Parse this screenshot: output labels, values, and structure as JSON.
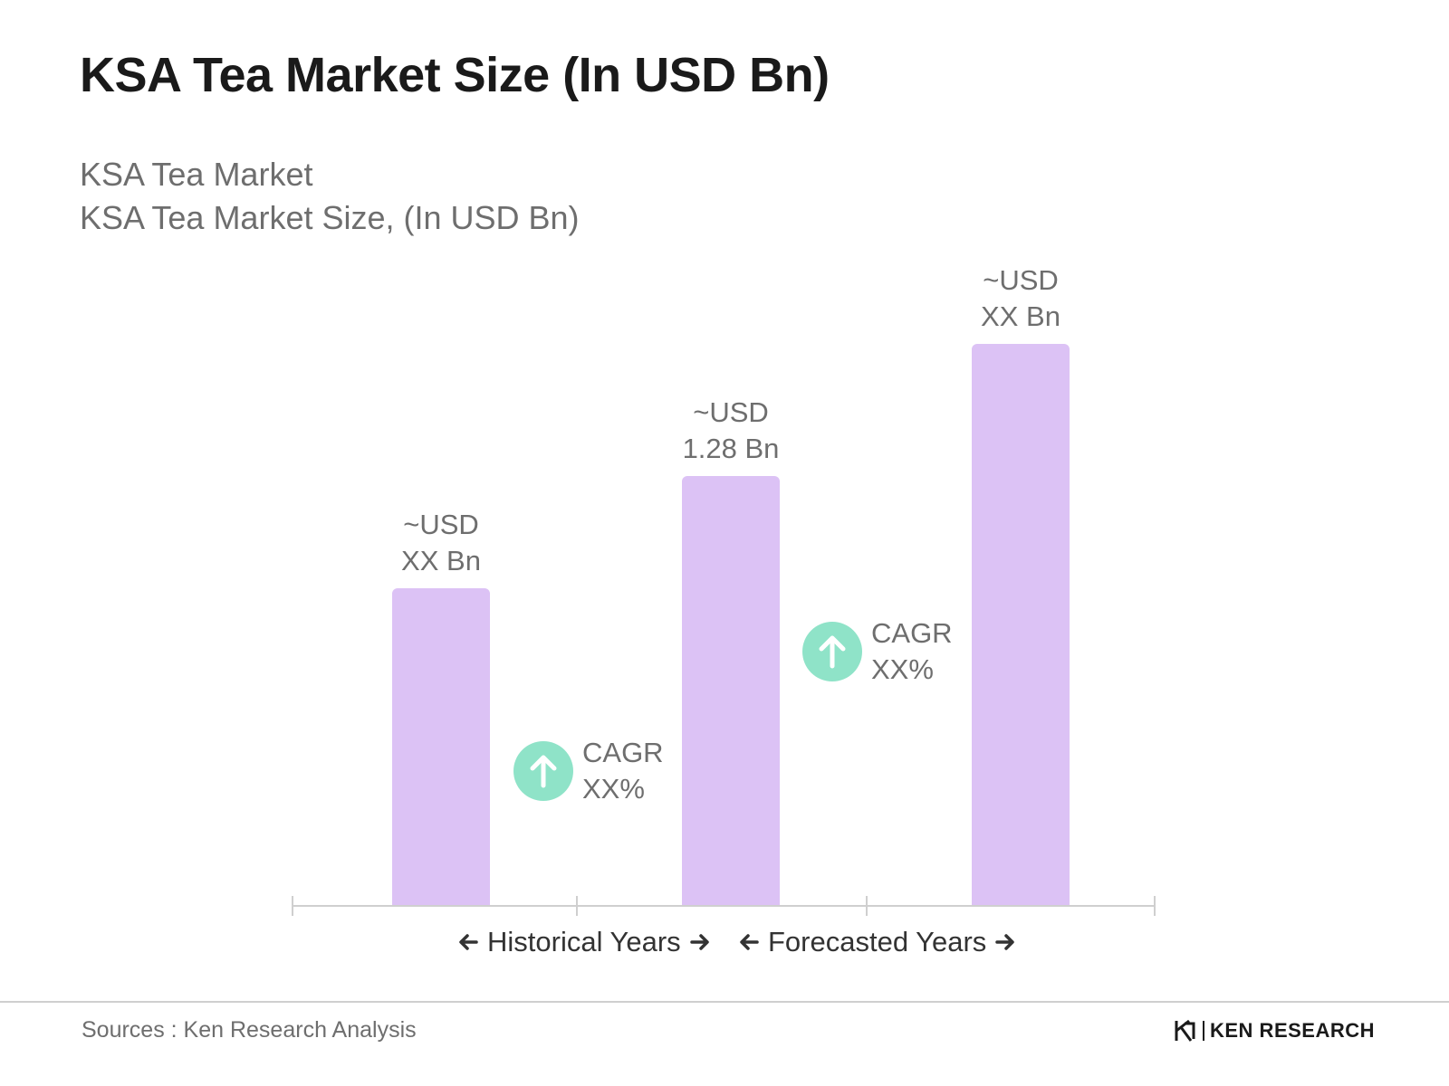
{
  "header": {
    "title": "KSA Tea Market Size (In USD Bn)",
    "subtitle_line1": "KSA Tea Market",
    "subtitle_line2": "KSA Tea Market Size, (In USD Bn)"
  },
  "colors": {
    "bar": "#dcc2f5",
    "cagr_badge": "#8fe3c8",
    "axis": "#cfcfcf"
  },
  "chart_data": {
    "type": "bar",
    "categories": [
      "",
      "",
      ""
    ],
    "values": [
      null,
      1.28,
      null
    ],
    "relative_heights": [
      0.565,
      0.765,
      1.0
    ],
    "bar_labels": [
      {
        "line1": "~USD",
        "line2": "XX Bn"
      },
      {
        "line1": "~USD",
        "line2": "1.28 Bn"
      },
      {
        "line1": "~USD",
        "line2": "XX Bn"
      }
    ],
    "cagr_labels": [
      {
        "line1": "CAGR",
        "line2": "XX%"
      },
      {
        "line1": "CAGR",
        "line2": "XX%"
      }
    ],
    "periods": {
      "historical": "Historical Years",
      "forecasted": "Forecasted Years"
    },
    "title": "KSA Tea Market Size (In USD Bn)",
    "xlabel": "",
    "ylabel": "",
    "grid": false
  },
  "footer": {
    "source": "Sources : Ken Research Analysis",
    "logo_icon": "ken-research-k-icon",
    "logo_text": "KEN RESEARCH"
  }
}
